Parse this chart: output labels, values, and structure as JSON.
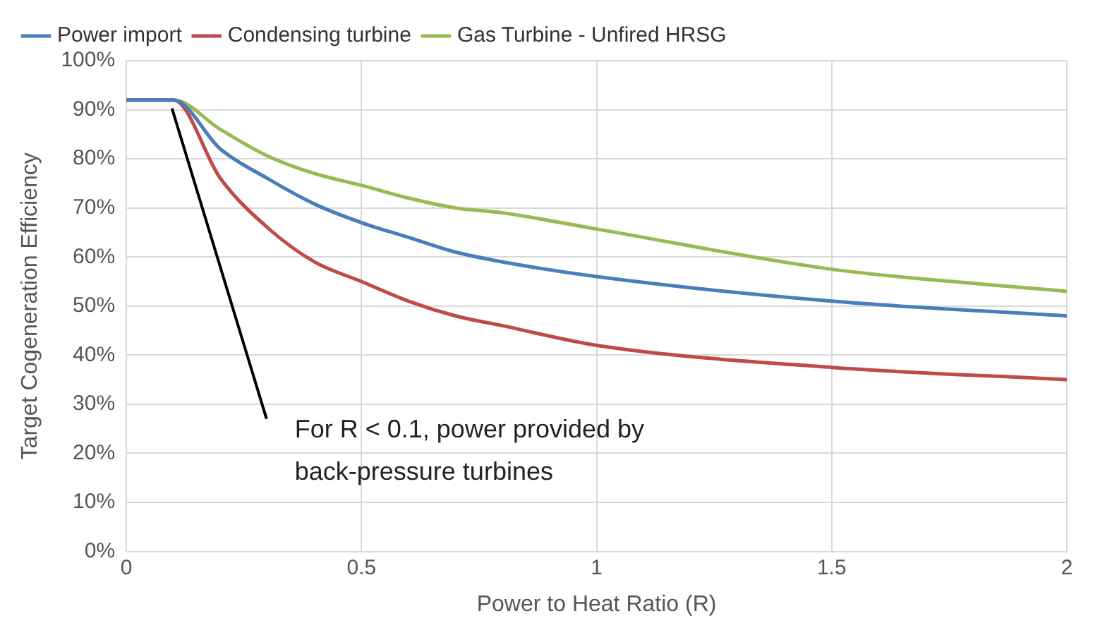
{
  "chart_data": {
    "type": "line",
    "xlabel": "Power to Heat Ratio (R)",
    "ylabel": "Target Cogeneration Efficiency",
    "x": [
      0,
      0.1,
      0.2,
      0.3,
      0.4,
      0.5,
      0.6,
      0.7,
      0.8,
      1,
      1.5,
      2
    ],
    "series": [
      {
        "name": "Power import",
        "color": "#4a7ebb",
        "values": [
          92,
          92,
          82,
          76,
          70.8,
          67,
          64,
          61,
          59,
          56,
          51,
          48
        ]
      },
      {
        "name": "Condensing turbine",
        "color": "#be4b48",
        "values": [
          92,
          92,
          76,
          66,
          59,
          55,
          51,
          48,
          46,
          42,
          37.5,
          35
        ]
      },
      {
        "name": "Gas Turbine - Unfired HRSG",
        "color": "#98b954",
        "values": [
          92,
          92,
          86,
          80.6,
          77,
          74.6,
          72,
          70,
          69,
          65.7,
          57.5,
          53
        ]
      }
    ],
    "xlim": [
      0,
      2
    ],
    "xticks": [
      0,
      0.5,
      1,
      1.5,
      2
    ],
    "ylim": [
      0,
      100
    ],
    "yticks": [
      {
        "value": 0,
        "label": "0%"
      },
      {
        "value": 10,
        "label": "10%"
      },
      {
        "value": 20,
        "label": "20%"
      },
      {
        "value": 30,
        "label": "30%"
      },
      {
        "value": 40,
        "label": "40%"
      },
      {
        "value": 50,
        "label": "50%"
      },
      {
        "value": 60,
        "label": "60%"
      },
      {
        "value": 70,
        "label": "70%"
      },
      {
        "value": 80,
        "label": "80%"
      },
      {
        "value": 90,
        "label": "90%"
      },
      {
        "value": 100,
        "label": "100%"
      }
    ],
    "annotations": [
      {
        "text": "For R < 0.1, power provided by back-pressure turbines",
        "x": 0.1,
        "y": 92
      }
    ],
    "grid": true,
    "legend": "top",
    "marker": "none",
    "line_style": "solid"
  }
}
